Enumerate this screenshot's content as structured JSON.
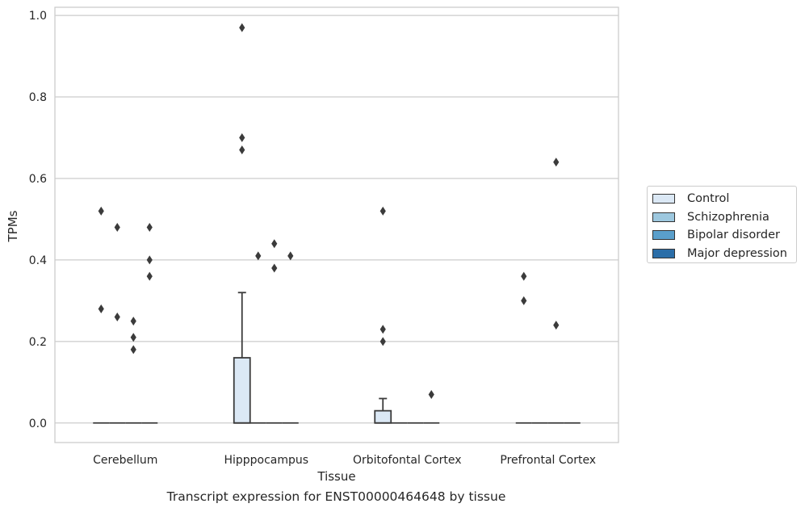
{
  "chart_data": {
    "type": "box",
    "title": "Transcript expression for ENST00000464648 by tissue",
    "xlabel": "Tissue",
    "ylabel": "TPMs",
    "ylim": [
      -0.048,
      1.02
    ],
    "yticks": [
      "0.0",
      "0.2",
      "0.4",
      "0.6",
      "0.8",
      "1.0"
    ],
    "grid": true,
    "legend_position": "right",
    "categories": [
      "Cerebellum",
      "Hipppocampus",
      "Orbitofontal Cortex",
      "Prefrontal Cortex"
    ],
    "series": [
      {
        "name": "Control",
        "color": "#dbe8f5",
        "boxes": [
          {
            "q1": 0,
            "median": 0,
            "q3": 0,
            "whisker_low": 0,
            "whisker_high": 0,
            "outliers": [
              0.52,
              0.28
            ]
          },
          {
            "q1": 0,
            "median": 0,
            "q3": 0.16,
            "whisker_low": 0,
            "whisker_high": 0.32,
            "outliers": [
              0.97,
              0.7,
              0.67
            ]
          },
          {
            "q1": 0,
            "median": 0,
            "q3": 0.03,
            "whisker_low": 0,
            "whisker_high": 0.06,
            "outliers": [
              0.52,
              0.23,
              0.2
            ]
          },
          {
            "q1": 0,
            "median": 0,
            "q3": 0,
            "whisker_low": 0,
            "whisker_high": 0,
            "outliers": [
              0.36,
              0.3
            ]
          }
        ]
      },
      {
        "name": "Schizophrenia",
        "color": "#9dc8df",
        "boxes": [
          {
            "q1": 0,
            "median": 0,
            "q3": 0,
            "whisker_low": 0,
            "whisker_high": 0,
            "outliers": [
              0.48,
              0.26
            ]
          },
          {
            "q1": 0,
            "median": 0,
            "q3": 0,
            "whisker_low": 0,
            "whisker_high": 0,
            "outliers": [
              0.41
            ]
          },
          {
            "q1": 0,
            "median": 0,
            "q3": 0,
            "whisker_low": 0,
            "whisker_high": 0,
            "outliers": []
          },
          {
            "q1": 0,
            "median": 0,
            "q3": 0,
            "whisker_low": 0,
            "whisker_high": 0,
            "outliers": []
          }
        ]
      },
      {
        "name": "Bipolar disorder",
        "color": "#5a9fcb",
        "boxes": [
          {
            "q1": 0,
            "median": 0,
            "q3": 0,
            "whisker_low": 0,
            "whisker_high": 0,
            "outliers": [
              0.25,
              0.21,
              0.18
            ]
          },
          {
            "q1": 0,
            "median": 0,
            "q3": 0,
            "whisker_low": 0,
            "whisker_high": 0,
            "outliers": [
              0.44,
              0.38
            ]
          },
          {
            "q1": 0,
            "median": 0,
            "q3": 0,
            "whisker_low": 0,
            "whisker_high": 0,
            "outliers": []
          },
          {
            "q1": 0,
            "median": 0,
            "q3": 0,
            "whisker_low": 0,
            "whisker_high": 0,
            "outliers": [
              0.64,
              0.24
            ]
          }
        ]
      },
      {
        "name": "Major depression",
        "color": "#2b6ea8",
        "boxes": [
          {
            "q1": 0,
            "median": 0,
            "q3": 0,
            "whisker_low": 0,
            "whisker_high": 0,
            "outliers": [
              0.48,
              0.4,
              0.36
            ]
          },
          {
            "q1": 0,
            "median": 0,
            "q3": 0,
            "whisker_low": 0,
            "whisker_high": 0,
            "outliers": [
              0.41
            ]
          },
          {
            "q1": 0,
            "median": 0,
            "q3": 0,
            "whisker_low": 0,
            "whisker_high": 0,
            "outliers": [
              0.07
            ]
          },
          {
            "q1": 0,
            "median": 0,
            "q3": 0,
            "whisker_low": 0,
            "whisker_high": 0,
            "outliers": []
          }
        ]
      }
    ]
  }
}
